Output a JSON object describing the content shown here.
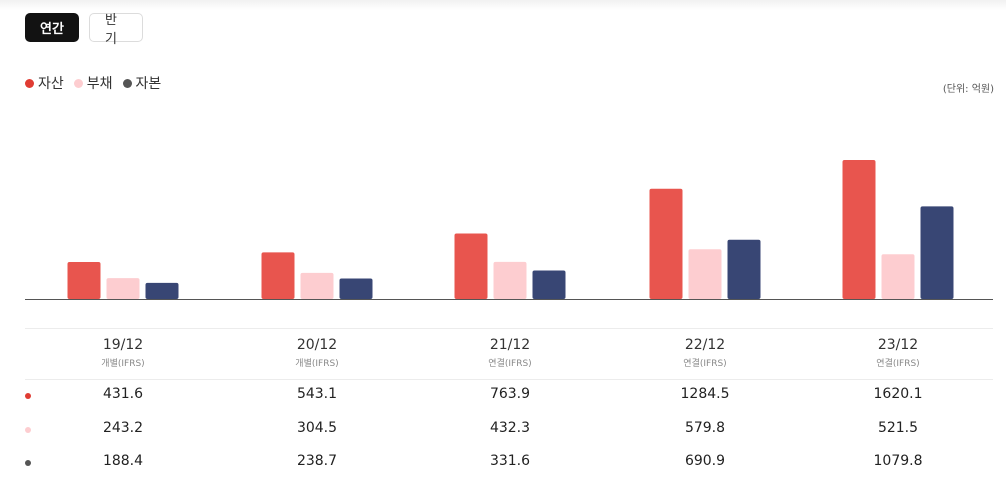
{
  "tabs": [
    {
      "label": "연간",
      "active": true
    },
    {
      "label": "반기",
      "active": false
    }
  ],
  "unit_label": "(단위: 억원)",
  "colors": {
    "asset": "#e8554e",
    "liability": "#fdcdd0",
    "equity": "#384674",
    "axis": "#555555"
  },
  "chart_data": {
    "type": "bar",
    "categories": [
      "19/12",
      "20/12",
      "21/12",
      "22/12",
      "23/12"
    ],
    "category_types": [
      "개별(IFRS)",
      "개별(IFRS)",
      "연결(IFRS)",
      "연결(IFRS)",
      "연결(IFRS)"
    ],
    "series": [
      {
        "name": "자산",
        "values": [
          431.6,
          543.1,
          763.9,
          1284.5,
          1620.1
        ]
      },
      {
        "name": "부채",
        "values": [
          243.2,
          304.5,
          432.3,
          579.8,
          521.5
        ]
      },
      {
        "name": "자본",
        "values": [
          188.4,
          238.7,
          331.6,
          690.9,
          1079.8
        ]
      }
    ],
    "ylim": [
      0,
      1620.1
    ],
    "legend_position": "top-left",
    "grid": false
  }
}
